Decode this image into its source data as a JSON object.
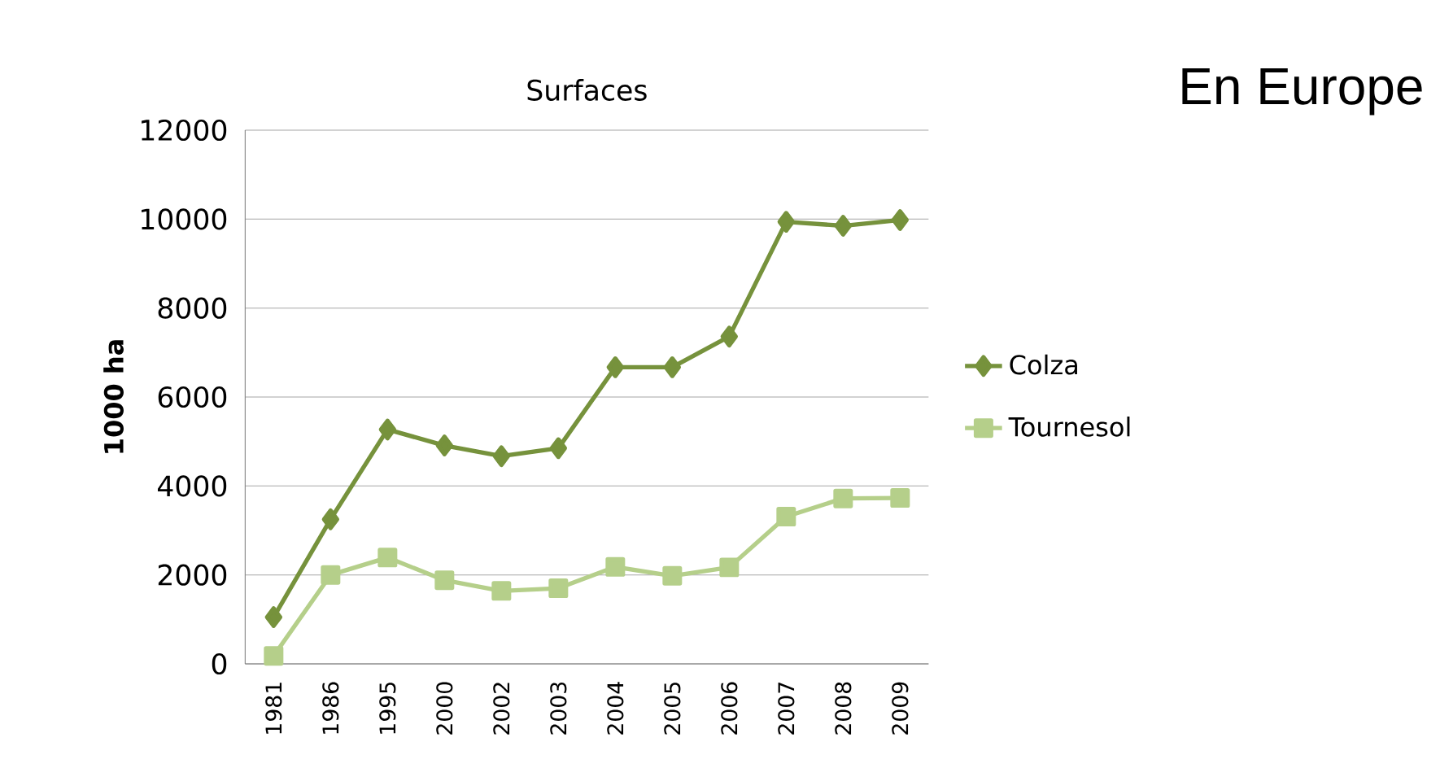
{
  "chart_data": {
    "type": "line",
    "title": "Surfaces",
    "ylabel": "1000 ha",
    "annotations": [
      "En Europe"
    ],
    "categories": [
      "1981",
      "1986",
      "1995",
      "2000",
      "2002",
      "2003",
      "2004",
      "2005",
      "2006",
      "2007",
      "2008",
      "2009"
    ],
    "series": [
      {
        "name": "Colza",
        "color": "#76923c",
        "marker": "diamond",
        "values": [
          1050,
          3250,
          5270,
          4910,
          4670,
          4850,
          6670,
          6670,
          7360,
          9940,
          9850,
          9980
        ]
      },
      {
        "name": "Tournesol",
        "color": "#b5cf8a",
        "marker": "square",
        "values": [
          180,
          2000,
          2390,
          1880,
          1640,
          1700,
          2180,
          1980,
          2170,
          3310,
          3720,
          3730
        ]
      }
    ],
    "ylim": [
      0,
      12000
    ],
    "yticks": [
      0,
      2000,
      4000,
      6000,
      8000,
      10000,
      12000
    ],
    "grid": "y",
    "legend": "right",
    "line_style": "solid"
  }
}
